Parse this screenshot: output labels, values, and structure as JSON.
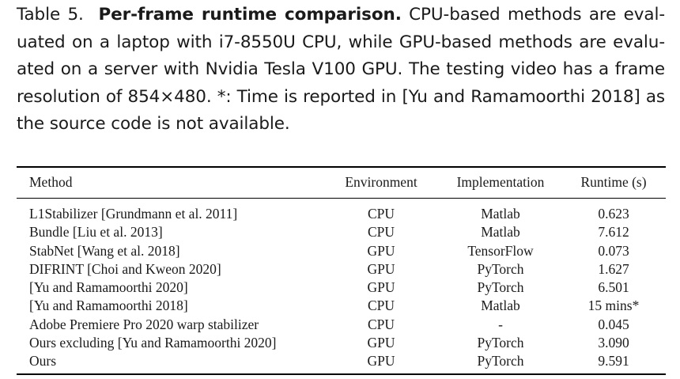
{
  "caption": {
    "label": "Table 5.",
    "title": "Per-frame runtime comparison.",
    "lines": [
      "CPU-based methods are eval-",
      "uated on a laptop with i7-8550U CPU, while GPU-based methods are evalu-",
      "ated on a server with Nvidia Tesla V100 GPU. The testing video has a frame",
      "resolution of 854×480. *: Time is reported in [Yu and Ramamoorthi 2018] as",
      "the source code is not available."
    ]
  },
  "table": {
    "headers": {
      "method": "Method",
      "environment": "Environment",
      "implementation": "Implementation",
      "runtime": "Runtime (s)"
    },
    "rows": [
      {
        "method": "L1Stabilizer [Grundmann et al. 2011]",
        "environment": "CPU",
        "implementation": "Matlab",
        "runtime": "0.623"
      },
      {
        "method": "Bundle [Liu et al. 2013]",
        "environment": "CPU",
        "implementation": "Matlab",
        "runtime": "7.612"
      },
      {
        "method": "StabNet [Wang et al. 2018]",
        "environment": "GPU",
        "implementation": "TensorFlow",
        "runtime": "0.073"
      },
      {
        "method": "DIFRINT [Choi and Kweon 2020]",
        "environment": "GPU",
        "implementation": "PyTorch",
        "runtime": "1.627"
      },
      {
        "method": "[Yu and Ramamoorthi 2020]",
        "environment": "GPU",
        "implementation": "PyTorch",
        "runtime": "6.501"
      },
      {
        "method": "[Yu and Ramamoorthi 2018]",
        "environment": "CPU",
        "implementation": "Matlab",
        "runtime": "15 mins*"
      },
      {
        "method": "Adobe Premiere Pro 2020 warp stabilizer",
        "environment": "CPU",
        "implementation": "-",
        "runtime": "0.045"
      },
      {
        "method": "Ours excluding [Yu and Ramamoorthi 2020]",
        "environment": "GPU",
        "implementation": "PyTorch",
        "runtime": "3.090"
      },
      {
        "method": "Ours",
        "environment": "GPU",
        "implementation": "PyTorch",
        "runtime": "9.591"
      }
    ]
  }
}
